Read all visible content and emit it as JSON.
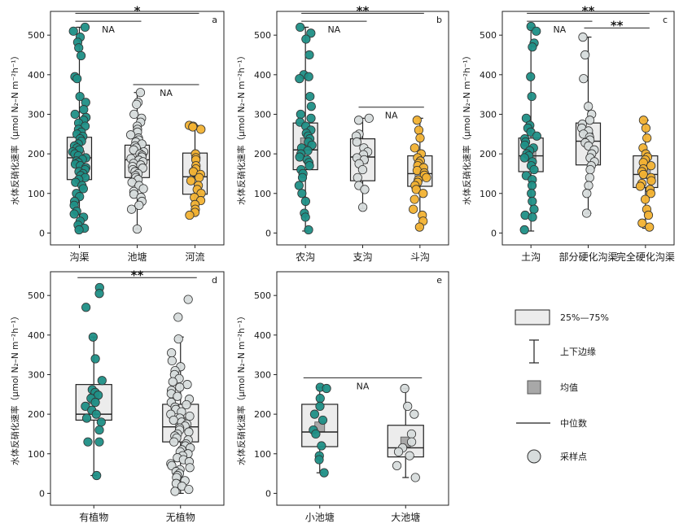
{
  "colors": {
    "teal": "#1f8f86",
    "grey": "#d7dcdc",
    "orange": "#f2b233",
    "box_fill": "#ececec",
    "mean_fill": "#a8a8a8",
    "point_edge": "#333333"
  },
  "chart_data": [
    {
      "type": "box",
      "panel": "a",
      "ylabel": "水体反硝化速率（μmol N₂–N m⁻²h⁻¹）",
      "ylim": [
        -30,
        560
      ],
      "yticks": [
        0,
        100,
        200,
        300,
        400,
        500
      ],
      "categories": [
        "沟渠",
        "池塘",
        "河流"
      ],
      "series": [
        {
          "category": "沟渠",
          "color": "teal",
          "q1": 135,
          "median": 190,
          "q3": 242,
          "mean": 195,
          "whisker_low": 5,
          "whisker_high": 520,
          "points": [
            520,
            510,
            495,
            482,
            468,
            448,
            395,
            390,
            345,
            330,
            312,
            300,
            292,
            285,
            278,
            270,
            262,
            255,
            250,
            244,
            238,
            232,
            225,
            220,
            215,
            210,
            205,
            200,
            195,
            190,
            186,
            182,
            178,
            174,
            170,
            165,
            160,
            155,
            150,
            145,
            140,
            135,
            128,
            120,
            112,
            100,
            92,
            80,
            70,
            55,
            48,
            40,
            30,
            20,
            12,
            8
          ]
        },
        {
          "category": "池塘",
          "color": "grey",
          "q1": 140,
          "median": 185,
          "q3": 222,
          "mean": 180,
          "whisker_low": 10,
          "whisker_high": 355,
          "points": [
            355,
            330,
            325,
            300,
            290,
            280,
            270,
            262,
            255,
            248,
            240,
            235,
            230,
            225,
            220,
            215,
            210,
            205,
            200,
            196,
            192,
            188,
            184,
            180,
            176,
            172,
            168,
            164,
            160,
            155,
            150,
            145,
            140,
            135,
            128,
            120,
            112,
            105,
            98,
            90,
            80,
            70,
            60,
            10
          ]
        },
        {
          "category": "河流",
          "color": "orange",
          "q1": 98,
          "median": 142,
          "q3": 202,
          "mean": 150,
          "whisker_low": 45,
          "whisker_high": 272,
          "points": [
            272,
            270,
            268,
            262,
            200,
            190,
            185,
            170,
            162,
            155,
            148,
            140,
            132,
            120,
            110,
            100,
            90,
            82,
            72,
            60,
            52,
            45
          ]
        }
      ],
      "significance": [
        {
          "label": "*",
          "from": 0,
          "to": 2,
          "value": 555
        },
        {
          "label": "NA",
          "from": 0,
          "to": 1,
          "value": 535
        },
        {
          "label": "NA",
          "from": 1,
          "to": 2,
          "value": 375
        }
      ]
    },
    {
      "type": "box",
      "panel": "b",
      "ylabel": "水体反硝化速率（μmol N₂–N m⁻²h⁻¹）",
      "ylim": [
        -30,
        560
      ],
      "yticks": [
        0,
        100,
        200,
        300,
        400,
        500
      ],
      "categories": [
        "农沟",
        "支沟",
        "斗沟"
      ],
      "series": [
        {
          "category": "农沟",
          "color": "teal",
          "q1": 160,
          "median": 210,
          "q3": 278,
          "mean": 228,
          "whisker_low": 5,
          "whisker_high": 520,
          "points": [
            520,
            505,
            490,
            450,
            400,
            395,
            390,
            345,
            320,
            300,
            290,
            280,
            270,
            260,
            252,
            245,
            238,
            230,
            222,
            215,
            208,
            200,
            192,
            185,
            178,
            170,
            160,
            150,
            140,
            120,
            100,
            80,
            50,
            40,
            8
          ]
        },
        {
          "category": "支沟",
          "color": "grey",
          "q1": 132,
          "median": 192,
          "q3": 238,
          "mean": 188,
          "whisker_low": 62,
          "whisker_high": 290,
          "points": [
            290,
            285,
            250,
            245,
            230,
            215,
            205,
            198,
            190,
            185,
            175,
            160,
            140,
            120,
            110,
            65
          ]
        },
        {
          "category": "斗沟",
          "color": "orange",
          "q1": 118,
          "median": 150,
          "q3": 195,
          "mean": 155,
          "whisker_low": 12,
          "whisker_high": 290,
          "points": [
            285,
            260,
            240,
            215,
            200,
            190,
            182,
            176,
            170,
            165,
            158,
            152,
            146,
            140,
            134,
            128,
            120,
            110,
            100,
            85,
            60,
            45,
            30,
            15
          ]
        }
      ],
      "significance": [
        {
          "label": "**",
          "from": 0,
          "to": 2,
          "value": 555
        },
        {
          "label": "NA",
          "from": 0,
          "to": 1,
          "value": 535
        },
        {
          "label": "NA",
          "from": 1,
          "to": 2,
          "value": 318
        }
      ]
    },
    {
      "type": "box",
      "panel": "c",
      "ylabel": "水体反硝化速率（μmol N₂–N m⁻²h⁻¹）",
      "ylim": [
        -30,
        560
      ],
      "yticks": [
        0,
        100,
        200,
        300,
        400,
        500
      ],
      "categories": [
        "土沟",
        "部分硬化沟渠",
        "完全硬化沟渠"
      ],
      "series": [
        {
          "category": "土沟",
          "color": "teal",
          "q1": 155,
          "median": 195,
          "q3": 240,
          "mean": 200,
          "whisker_low": 5,
          "whisker_high": 520,
          "points": [
            522,
            510,
            480,
            470,
            395,
            345,
            290,
            272,
            265,
            255,
            245,
            238,
            230,
            222,
            215,
            208,
            200,
            195,
            190,
            180,
            170,
            160,
            145,
            135,
            120,
            100,
            80,
            60,
            45,
            40,
            8
          ]
        },
        {
          "category": "部分硬化沟渠",
          "color": "grey",
          "q1": 172,
          "median": 232,
          "q3": 278,
          "mean": 240,
          "whisker_low": 50,
          "whisker_high": 495,
          "points": [
            495,
            450,
            390,
            320,
            300,
            285,
            275,
            265,
            258,
            250,
            242,
            235,
            228,
            220,
            210,
            200,
            190,
            180,
            170,
            160,
            140,
            120,
            100,
            50
          ]
        },
        {
          "category": "完全硬化沟渠",
          "color": "orange",
          "q1": 115,
          "median": 148,
          "q3": 195,
          "mean": 150,
          "whisker_low": 12,
          "whisker_high": 285,
          "points": [
            285,
            265,
            240,
            215,
            200,
            192,
            185,
            178,
            170,
            162,
            155,
            148,
            140,
            132,
            125,
            118,
            110,
            100,
            85,
            60,
            45,
            25,
            15
          ]
        }
      ],
      "significance": [
        {
          "label": "**",
          "from": 0,
          "to": 2,
          "value": 555
        },
        {
          "label": "NA",
          "from": 0,
          "to": 1,
          "value": 535
        },
        {
          "label": "**",
          "from": 1,
          "to": 2,
          "value": 518
        }
      ]
    },
    {
      "type": "box",
      "panel": "d",
      "ylabel": "水体反硝化速率（μmol N₂–N m⁻²h⁻¹）",
      "ylim": [
        -30,
        560
      ],
      "yticks": [
        0,
        100,
        200,
        300,
        400,
        500
      ],
      "categories": [
        "有植物",
        "无植物"
      ],
      "series": [
        {
          "category": "有植物",
          "color": "teal",
          "q1": 185,
          "median": 200,
          "q3": 275,
          "mean": 238,
          "whisker_low": 45,
          "whisker_high": 395,
          "points": [
            520,
            505,
            470,
            395,
            340,
            285,
            262,
            255,
            248,
            240,
            230,
            220,
            210,
            200,
            190,
            180,
            160,
            130,
            130,
            45
          ]
        },
        {
          "category": "无植物",
          "color": "grey",
          "q1": 130,
          "median": 168,
          "q3": 225,
          "mean": 180,
          "whisker_low": 0,
          "whisker_high": 395,
          "points": [
            490,
            445,
            390,
            355,
            335,
            320,
            310,
            300,
            290,
            282,
            275,
            268,
            260,
            252,
            245,
            238,
            230,
            224,
            218,
            212,
            206,
            200,
            195,
            190,
            185,
            180,
            175,
            170,
            165,
            160,
            155,
            150,
            145,
            140,
            135,
            130,
            125,
            120,
            115,
            110,
            105,
            100,
            95,
            90,
            85,
            80,
            75,
            70,
            65,
            60,
            55,
            50,
            45,
            40,
            32,
            25,
            18,
            10,
            5
          ]
        }
      ],
      "significance": [
        {
          "label": "**",
          "from": 0,
          "to": 1,
          "value": 545
        }
      ]
    },
    {
      "type": "box",
      "panel": "e",
      "ylabel": "水体反硝化速率（μmol N₂–N m⁻²h⁻¹）",
      "ylim": [
        -30,
        560
      ],
      "yticks": [
        0,
        100,
        200,
        300,
        400,
        500
      ],
      "categories": [
        "小池塘",
        "大池塘"
      ],
      "series": [
        {
          "category": "小池塘",
          "color": "teal",
          "q1": 118,
          "median": 155,
          "q3": 225,
          "mean": 168,
          "whisker_low": 52,
          "whisker_high": 268,
          "points": [
            268,
            265,
            240,
            220,
            200,
            185,
            160,
            150,
            120,
            95,
            85,
            52
          ]
        },
        {
          "category": "大池塘",
          "color": "grey",
          "q1": 92,
          "median": 115,
          "q3": 172,
          "mean": 130,
          "whisker_low": 40,
          "whisker_high": 265,
          "points": [
            265,
            220,
            200,
            150,
            130,
            115,
            105,
            95,
            70,
            40
          ]
        }
      ],
      "significance": [
        {
          "label": "NA",
          "from": 0,
          "to": 1,
          "value": 292
        }
      ]
    }
  ],
  "legend": {
    "items": [
      {
        "symbol": "box",
        "label": "25%—75%"
      },
      {
        "symbol": "whisker",
        "label": "上下边缘"
      },
      {
        "symbol": "mean",
        "label": "均值"
      },
      {
        "symbol": "median",
        "label": "中位数"
      },
      {
        "symbol": "point",
        "label": "采样点"
      }
    ]
  }
}
